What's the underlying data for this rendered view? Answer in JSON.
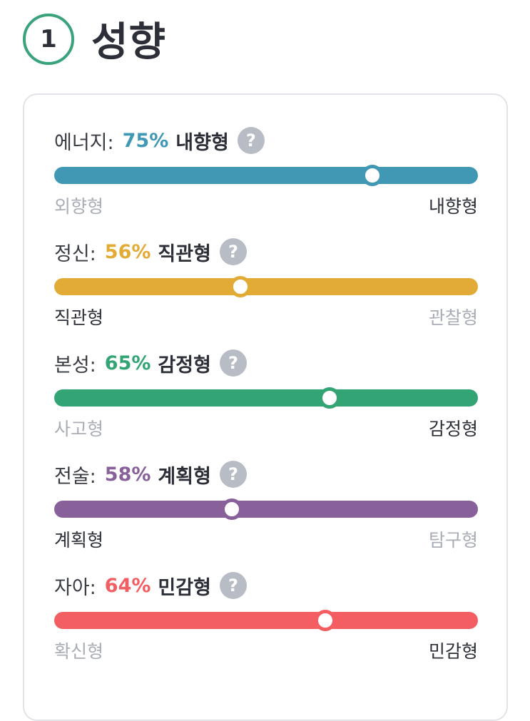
{
  "header": {
    "number": "1",
    "title": "성향"
  },
  "traits": [
    {
      "name": "에너지:",
      "percent": "75%",
      "value": 0.75,
      "type": "내향형",
      "help": "?",
      "left": "외향형",
      "right": "내향형",
      "active": "right",
      "color": "#4098b5"
    },
    {
      "name": "정신:",
      "percent": "56%",
      "value": 0.44,
      "type": "직관형",
      "help": "?",
      "left": "직관형",
      "right": "관찰형",
      "active": "left",
      "color": "#e2ab36"
    },
    {
      "name": "본성:",
      "percent": "65%",
      "value": 0.65,
      "type": "감정형",
      "help": "?",
      "left": "사고형",
      "right": "감정형",
      "active": "right",
      "color": "#33a474"
    },
    {
      "name": "전술:",
      "percent": "58%",
      "value": 0.42,
      "type": "계획형",
      "help": "?",
      "left": "계획형",
      "right": "탐구형",
      "active": "left",
      "color": "#88619a"
    },
    {
      "name": "자아:",
      "percent": "64%",
      "value": 0.64,
      "type": "민감형",
      "help": "?",
      "left": "확신형",
      "right": "민감형",
      "active": "right",
      "color": "#f25e62"
    }
  ]
}
